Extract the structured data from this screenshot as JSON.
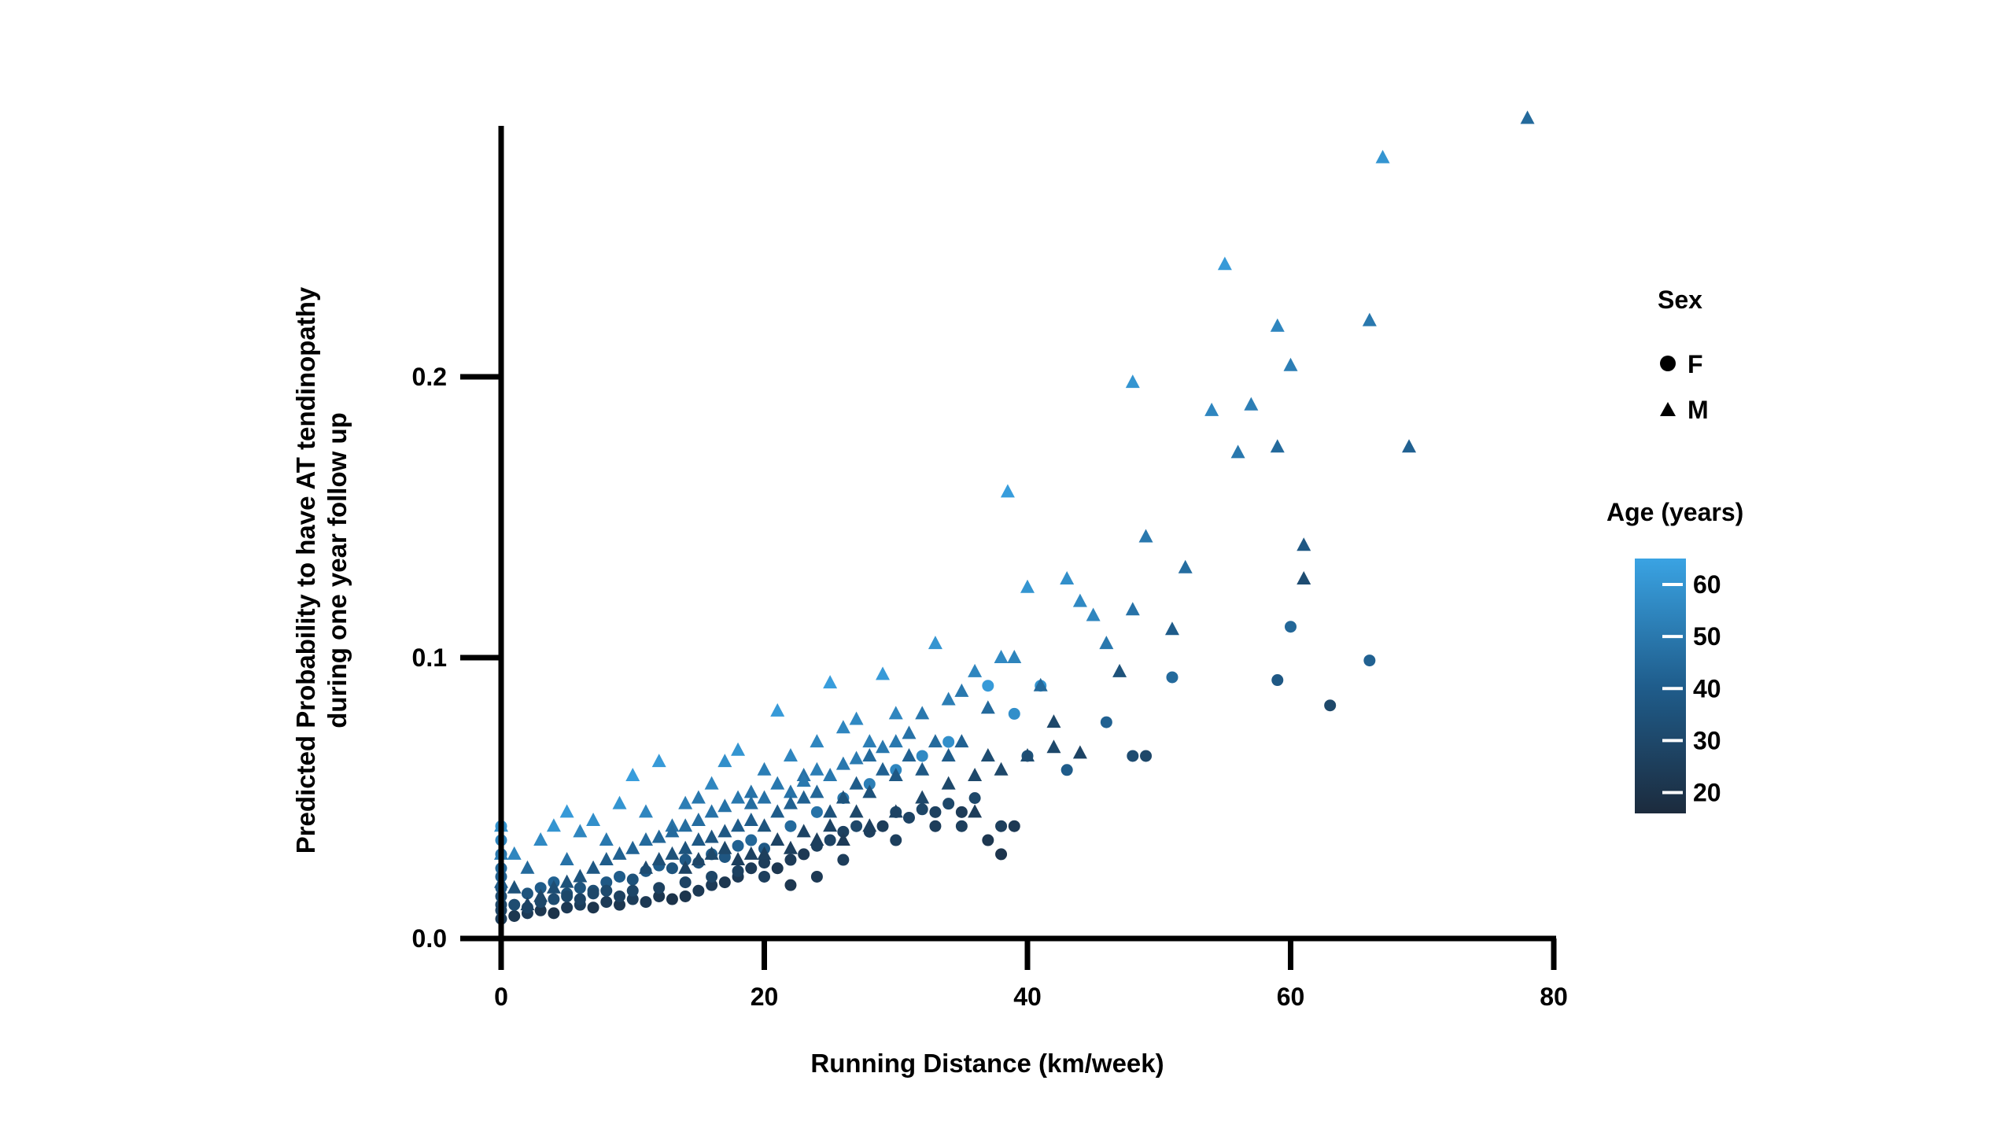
{
  "chart_data": {
    "type": "scatter",
    "title": "",
    "xlabel": "Running Distance (km/week)",
    "ylabel_line1": "Predicted Probability to have AT tendinopathy",
    "ylabel_line2": "during one year follow up",
    "xlim": [
      0,
      80
    ],
    "ylim": [
      0,
      0.29
    ],
    "xticks": [
      0,
      20,
      40,
      60,
      80
    ],
    "xtick_labels": [
      "0",
      "20",
      "40",
      "60",
      "80"
    ],
    "yticks": [
      0,
      0.1,
      0.2
    ],
    "ytick_labels": [
      "0.0",
      "0.1",
      "0.2"
    ],
    "grid": false,
    "legend_placement": "right",
    "shape_legend": {
      "title": "Sex",
      "items": [
        {
          "label": "F",
          "shape": "circle"
        },
        {
          "label": "M",
          "shape": "triangle"
        }
      ]
    },
    "color_legend": {
      "title": "Age (years)",
      "range": [
        16,
        65
      ],
      "ticks": [
        20,
        30,
        40,
        50,
        60
      ],
      "tick_labels": [
        "20",
        "30",
        "40",
        "50",
        "60"
      ],
      "color_low": "#1c2b3d",
      "color_mid": "#1f5d8c",
      "color_high": "#3aa3e3"
    },
    "series_female": [
      [
        0,
        0.007,
        25
      ],
      [
        0,
        0.012,
        30
      ],
      [
        0,
        0.018,
        38
      ],
      [
        0,
        0.025,
        45
      ],
      [
        0,
        0.03,
        50
      ],
      [
        0,
        0.035,
        55
      ],
      [
        0,
        0.04,
        60
      ],
      [
        0,
        0.022,
        42
      ],
      [
        0,
        0.015,
        33
      ],
      [
        0,
        0.01,
        28
      ],
      [
        1,
        0.008,
        22
      ],
      [
        2,
        0.009,
        24
      ],
      [
        3,
        0.01,
        22
      ],
      [
        4,
        0.009,
        20
      ],
      [
        5,
        0.011,
        23
      ],
      [
        6,
        0.012,
        25
      ],
      [
        7,
        0.011,
        21
      ],
      [
        8,
        0.013,
        24
      ],
      [
        9,
        0.012,
        22
      ],
      [
        10,
        0.014,
        25
      ],
      [
        11,
        0.013,
        23
      ],
      [
        12,
        0.015,
        22
      ],
      [
        13,
        0.014,
        20
      ],
      [
        14,
        0.015,
        21
      ],
      [
        15,
        0.017,
        23
      ],
      [
        16,
        0.019,
        24
      ],
      [
        17,
        0.02,
        22
      ],
      [
        18,
        0.022,
        23
      ],
      [
        19,
        0.025,
        24
      ],
      [
        20,
        0.027,
        25
      ],
      [
        21,
        0.025,
        22
      ],
      [
        22,
        0.028,
        24
      ],
      [
        23,
        0.03,
        23
      ],
      [
        24,
        0.033,
        26
      ],
      [
        25,
        0.035,
        28
      ],
      [
        26,
        0.038,
        27
      ],
      [
        27,
        0.04,
        30
      ],
      [
        28,
        0.038,
        26
      ],
      [
        29,
        0.04,
        25
      ],
      [
        30,
        0.045,
        30
      ],
      [
        31,
        0.043,
        28
      ],
      [
        32,
        0.046,
        29
      ],
      [
        33,
        0.045,
        27
      ],
      [
        34,
        0.048,
        30
      ],
      [
        35,
        0.045,
        24
      ],
      [
        36,
        0.05,
        30
      ],
      [
        37,
        0.035,
        22
      ],
      [
        38,
        0.03,
        21
      ],
      [
        39,
        0.04,
        23
      ],
      [
        40,
        0.065,
        35
      ],
      [
        2,
        0.011,
        28
      ],
      [
        3,
        0.013,
        30
      ],
      [
        4,
        0.014,
        32
      ],
      [
        5,
        0.016,
        34
      ],
      [
        6,
        0.018,
        36
      ],
      [
        7,
        0.017,
        33
      ],
      [
        8,
        0.02,
        38
      ],
      [
        9,
        0.022,
        40
      ],
      [
        10,
        0.021,
        35
      ],
      [
        11,
        0.024,
        38
      ],
      [
        12,
        0.026,
        40
      ],
      [
        13,
        0.025,
        36
      ],
      [
        14,
        0.028,
        38
      ],
      [
        15,
        0.027,
        35
      ],
      [
        16,
        0.03,
        40
      ],
      [
        17,
        0.029,
        37
      ],
      [
        18,
        0.033,
        42
      ],
      [
        19,
        0.035,
        44
      ],
      [
        20,
        0.032,
        38
      ],
      [
        22,
        0.04,
        45
      ],
      [
        24,
        0.045,
        48
      ],
      [
        26,
        0.05,
        50
      ],
      [
        28,
        0.055,
        52
      ],
      [
        30,
        0.06,
        55
      ],
      [
        32,
        0.065,
        56
      ],
      [
        34,
        0.07,
        58
      ],
      [
        37,
        0.09,
        62
      ],
      [
        39,
        0.08,
        58
      ],
      [
        41,
        0.09,
        60
      ],
      [
        43,
        0.06,
        40
      ],
      [
        46,
        0.077,
        42
      ],
      [
        48,
        0.065,
        32
      ],
      [
        49,
        0.065,
        30
      ],
      [
        51,
        0.093,
        45
      ],
      [
        59,
        0.092,
        38
      ],
      [
        60,
        0.111,
        44
      ],
      [
        63,
        0.083,
        30
      ],
      [
        66,
        0.099,
        42
      ],
      [
        1,
        0.012,
        32
      ],
      [
        2,
        0.016,
        36
      ],
      [
        3,
        0.018,
        40
      ],
      [
        4,
        0.02,
        42
      ],
      [
        5,
        0.015,
        30
      ],
      [
        6,
        0.014,
        28
      ],
      [
        7,
        0.016,
        30
      ],
      [
        8,
        0.017,
        31
      ],
      [
        9,
        0.015,
        27
      ],
      [
        10,
        0.017,
        29
      ],
      [
        12,
        0.018,
        27
      ],
      [
        14,
        0.02,
        28
      ],
      [
        16,
        0.022,
        29
      ],
      [
        18,
        0.024,
        27
      ],
      [
        20,
        0.022,
        26
      ],
      [
        22,
        0.019,
        22
      ],
      [
        24,
        0.022,
        23
      ],
      [
        26,
        0.028,
        25
      ],
      [
        30,
        0.035,
        26
      ],
      [
        33,
        0.04,
        25
      ],
      [
        35,
        0.04,
        26
      ],
      [
        38,
        0.04,
        26
      ]
    ],
    "series_male": [
      [
        0,
        0.02,
        40
      ],
      [
        0,
        0.03,
        52
      ],
      [
        0,
        0.04,
        58
      ],
      [
        1,
        0.018,
        35
      ],
      [
        1,
        0.03,
        55
      ],
      [
        2,
        0.025,
        45
      ],
      [
        3,
        0.035,
        56
      ],
      [
        4,
        0.04,
        60
      ],
      [
        5,
        0.045,
        62
      ],
      [
        6,
        0.038,
        55
      ],
      [
        5,
        0.028,
        48
      ],
      [
        7,
        0.042,
        58
      ],
      [
        8,
        0.035,
        50
      ],
      [
        9,
        0.048,
        60
      ],
      [
        10,
        0.058,
        63
      ],
      [
        11,
        0.045,
        55
      ],
      [
        12,
        0.063,
        62
      ],
      [
        13,
        0.04,
        48
      ],
      [
        14,
        0.048,
        52
      ],
      [
        15,
        0.05,
        50
      ],
      [
        16,
        0.055,
        55
      ],
      [
        17,
        0.063,
        58
      ],
      [
        18,
        0.067,
        60
      ],
      [
        19,
        0.052,
        48
      ],
      [
        20,
        0.06,
        52
      ],
      [
        21,
        0.081,
        62
      ],
      [
        22,
        0.065,
        55
      ],
      [
        23,
        0.058,
        48
      ],
      [
        24,
        0.07,
        55
      ],
      [
        25,
        0.091,
        63
      ],
      [
        26,
        0.075,
        55
      ],
      [
        27,
        0.078,
        56
      ],
      [
        28,
        0.065,
        45
      ],
      [
        29,
        0.094,
        62
      ],
      [
        30,
        0.08,
        55
      ],
      [
        31,
        0.073,
        48
      ],
      [
        32,
        0.08,
        50
      ],
      [
        33,
        0.105,
        60
      ],
      [
        34,
        0.085,
        52
      ],
      [
        35,
        0.088,
        50
      ],
      [
        36,
        0.095,
        55
      ],
      [
        37,
        0.082,
        45
      ],
      [
        38,
        0.1,
        56
      ],
      [
        38.5,
        0.159,
        63
      ],
      [
        39,
        0.1,
        54
      ],
      [
        40,
        0.125,
        60
      ],
      [
        41,
        0.09,
        45
      ],
      [
        42,
        0.077,
        30
      ],
      [
        43,
        0.128,
        58
      ],
      [
        44,
        0.12,
        56
      ],
      [
        45,
        0.115,
        55
      ],
      [
        46,
        0.105,
        50
      ],
      [
        47,
        0.095,
        35
      ],
      [
        48,
        0.117,
        48
      ],
      [
        48,
        0.198,
        60
      ],
      [
        49,
        0.143,
        50
      ],
      [
        51,
        0.11,
        40
      ],
      [
        52,
        0.132,
        46
      ],
      [
        54,
        0.188,
        55
      ],
      [
        55,
        0.24,
        62
      ],
      [
        56,
        0.173,
        50
      ],
      [
        57,
        0.19,
        52
      ],
      [
        59,
        0.175,
        45
      ],
      [
        59,
        0.218,
        55
      ],
      [
        60,
        0.204,
        52
      ],
      [
        61,
        0.14,
        38
      ],
      [
        61,
        0.128,
        32
      ],
      [
        66,
        0.22,
        50
      ],
      [
        67,
        0.278,
        60
      ],
      [
        69,
        0.175,
        42
      ],
      [
        78,
        0.292,
        45
      ],
      [
        2,
        0.012,
        28
      ],
      [
        3,
        0.015,
        30
      ],
      [
        4,
        0.018,
        33
      ],
      [
        5,
        0.02,
        35
      ],
      [
        6,
        0.022,
        36
      ],
      [
        7,
        0.025,
        38
      ],
      [
        8,
        0.028,
        40
      ],
      [
        9,
        0.03,
        42
      ],
      [
        10,
        0.032,
        43
      ],
      [
        11,
        0.035,
        45
      ],
      [
        12,
        0.036,
        44
      ],
      [
        13,
        0.038,
        45
      ],
      [
        14,
        0.04,
        46
      ],
      [
        15,
        0.042,
        46
      ],
      [
        16,
        0.045,
        48
      ],
      [
        17,
        0.047,
        48
      ],
      [
        18,
        0.05,
        50
      ],
      [
        19,
        0.048,
        46
      ],
      [
        20,
        0.05,
        48
      ],
      [
        21,
        0.055,
        50
      ],
      [
        22,
        0.052,
        48
      ],
      [
        23,
        0.056,
        50
      ],
      [
        24,
        0.06,
        52
      ],
      [
        25,
        0.058,
        50
      ],
      [
        26,
        0.062,
        50
      ],
      [
        27,
        0.064,
        51
      ],
      [
        28,
        0.07,
        52
      ],
      [
        29,
        0.068,
        50
      ],
      [
        30,
        0.07,
        50
      ],
      [
        11,
        0.025,
        32
      ],
      [
        12,
        0.028,
        34
      ],
      [
        13,
        0.03,
        35
      ],
      [
        14,
        0.032,
        36
      ],
      [
        15,
        0.035,
        38
      ],
      [
        16,
        0.036,
        37
      ],
      [
        17,
        0.038,
        38
      ],
      [
        18,
        0.04,
        40
      ],
      [
        19,
        0.042,
        40
      ],
      [
        20,
        0.04,
        36
      ],
      [
        21,
        0.045,
        40
      ],
      [
        22,
        0.048,
        42
      ],
      [
        23,
        0.05,
        42
      ],
      [
        24,
        0.052,
        44
      ],
      [
        25,
        0.045,
        35
      ],
      [
        26,
        0.05,
        36
      ],
      [
        27,
        0.055,
        40
      ],
      [
        28,
        0.052,
        35
      ],
      [
        29,
        0.06,
        42
      ],
      [
        30,
        0.058,
        38
      ],
      [
        31,
        0.065,
        42
      ],
      [
        32,
        0.06,
        38
      ],
      [
        33,
        0.07,
        45
      ],
      [
        34,
        0.065,
        40
      ],
      [
        35,
        0.07,
        42
      ],
      [
        36,
        0.058,
        30
      ],
      [
        37,
        0.065,
        32
      ],
      [
        40,
        0.065,
        32
      ],
      [
        42,
        0.068,
        30
      ],
      [
        44,
        0.066,
        28
      ],
      [
        14,
        0.025,
        28
      ],
      [
        15,
        0.028,
        29
      ],
      [
        16,
        0.03,
        30
      ],
      [
        17,
        0.032,
        30
      ],
      [
        18,
        0.028,
        26
      ],
      [
        19,
        0.03,
        27
      ],
      [
        20,
        0.03,
        26
      ],
      [
        21,
        0.035,
        28
      ],
      [
        22,
        0.032,
        26
      ],
      [
        23,
        0.038,
        28
      ],
      [
        24,
        0.035,
        26
      ],
      [
        25,
        0.04,
        28
      ],
      [
        26,
        0.035,
        24
      ],
      [
        27,
        0.045,
        30
      ],
      [
        28,
        0.04,
        26
      ],
      [
        30,
        0.045,
        28
      ],
      [
        32,
        0.05,
        30
      ],
      [
        34,
        0.055,
        30
      ],
      [
        36,
        0.045,
        25
      ],
      [
        38,
        0.06,
        30
      ]
    ]
  }
}
